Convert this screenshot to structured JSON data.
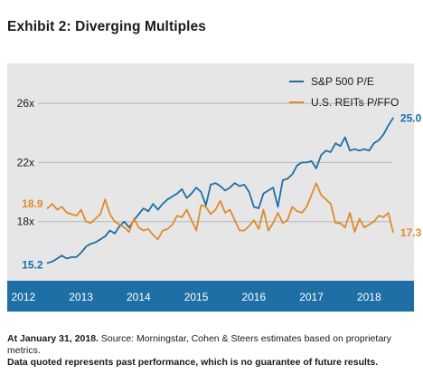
{
  "title": "Exhibit 2: Diverging Multiples",
  "footnote": {
    "date_text": "At January 31, 2018.",
    "source_text": " Source: Morningstar, Cohen & Steers estimates based on proprietary metrics.",
    "disclaimer": "Data quoted represents past performance, which is no guarantee of future results."
  },
  "colors": {
    "plot_background": "#e6e6e6",
    "axis_band": "#1e6fa5",
    "grid": "#b5b5b5",
    "sp500": "#1e6fa5",
    "reits": "#e08a2a"
  },
  "chart_data": {
    "type": "line",
    "title": "",
    "xlabel": "",
    "ylabel": "",
    "x_ticks": [
      "2012",
      "2013",
      "2014",
      "2015",
      "2016",
      "2017",
      "2018"
    ],
    "xlim": [
      2011.72,
      2018.78
    ],
    "y_ticks": [
      "18x",
      "22x",
      "26x"
    ],
    "y_tick_values": [
      18,
      22,
      26
    ],
    "ylim": [
      14,
      28.7
    ],
    "grid": true,
    "legend_position": "top-right",
    "series": [
      {
        "name": "S&P 500 P/E",
        "color": "#1e6fa5",
        "start": 2012.42,
        "step": 0.0833,
        "start_label": "15.2",
        "end_label": "25.0",
        "values": [
          15.2,
          15.3,
          15.5,
          15.7,
          15.5,
          15.6,
          15.6,
          15.9,
          16.3,
          16.5,
          16.6,
          16.8,
          17.0,
          17.4,
          17.2,
          17.7,
          18.0,
          17.6,
          18.1,
          18.5,
          18.9,
          18.7,
          19.2,
          18.8,
          19.2,
          19.5,
          19.7,
          19.9,
          20.2,
          19.6,
          19.9,
          20.3,
          20.0,
          19.1,
          20.5,
          20.6,
          20.4,
          20.1,
          20.3,
          20.6,
          20.4,
          20.5,
          20.0,
          19.0,
          18.9,
          19.9,
          20.1,
          20.3,
          19.0,
          20.8,
          20.9,
          21.2,
          21.8,
          22.0,
          22.0,
          22.1,
          21.6,
          22.5,
          22.8,
          22.7,
          23.3,
          23.1,
          23.7,
          22.8,
          22.9,
          22.8,
          22.9,
          22.8,
          23.3,
          23.5,
          23.9,
          24.5,
          25.0
        ]
      },
      {
        "name": "U.S. REITs P/FFO",
        "color": "#e08a2a",
        "start": 2012.42,
        "step": 0.0833,
        "start_label": "18.9",
        "end_label": "17.3",
        "values": [
          18.9,
          19.2,
          18.8,
          19.0,
          18.6,
          18.5,
          18.4,
          18.8,
          18.0,
          17.9,
          18.2,
          18.5,
          19.5,
          18.5,
          18.0,
          17.8,
          17.6,
          17.3,
          18.2,
          17.6,
          17.4,
          17.5,
          17.1,
          16.8,
          17.4,
          17.5,
          17.8,
          18.4,
          18.3,
          18.8,
          18.1,
          17.4,
          19.1,
          19.0,
          18.5,
          18.8,
          19.4,
          18.6,
          18.8,
          18.1,
          17.4,
          17.4,
          17.7,
          18.1,
          17.5,
          18.8,
          17.4,
          17.9,
          18.6,
          17.9,
          18.1,
          19.0,
          18.7,
          18.6,
          19.0,
          19.8,
          20.6,
          19.8,
          19.5,
          19.2,
          17.9,
          17.9,
          17.6,
          18.6,
          17.3,
          18.2,
          17.6,
          17.8,
          18.0,
          18.4,
          18.3,
          18.6,
          17.3
        ]
      }
    ]
  }
}
